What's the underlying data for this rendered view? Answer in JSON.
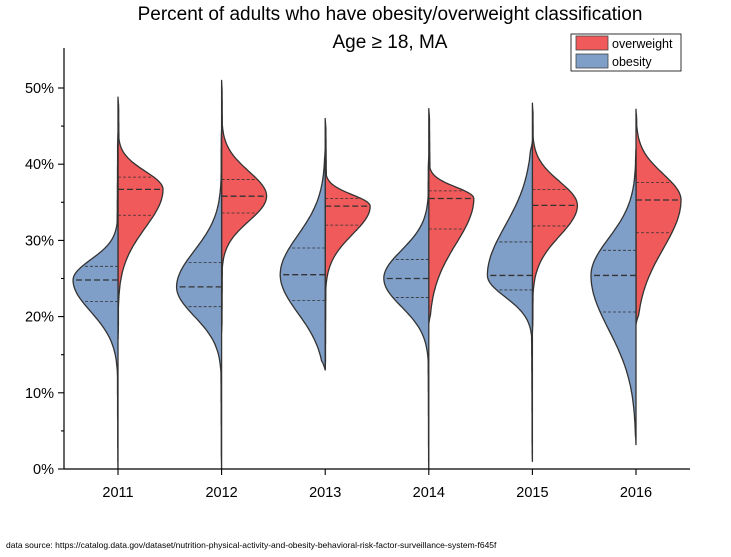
{
  "chart_data": {
    "type": "split-violin",
    "title": "Percent of adults who have obesity/overweight classification",
    "subtitle": "Age ≥ 18, MA",
    "categories": [
      "2011",
      "2012",
      "2013",
      "2014",
      "2015",
      "2016"
    ],
    "y_tick_labels": [
      "0%",
      "10%",
      "20%",
      "30%",
      "40%",
      "50%"
    ],
    "ylim": [
      0,
      55
    ],
    "legend_placement": "top-right",
    "series": [
      {
        "name": "overweight",
        "color": "#f05a5a",
        "side": "right",
        "min": [
          17,
          18,
          13,
          19,
          18,
          19
        ],
        "max": [
          48.8,
          51.0,
          46.0,
          47.3,
          48.0,
          47.2
        ],
        "q1": [
          33.3,
          33.6,
          32.0,
          31.5,
          31.9,
          31.0
        ],
        "median": [
          36.7,
          35.8,
          34.5,
          35.5,
          34.6,
          35.3
        ],
        "q3": [
          38.3,
          38.0,
          35.5,
          36.5,
          36.7,
          37.6
        ]
      },
      {
        "name": "obesity",
        "color": "#7f9fc8",
        "side": "left",
        "min": [
          0,
          0,
          13,
          0,
          1,
          3.2
        ],
        "max": [
          44.0,
          44.5,
          42.0,
          41.0,
          43.0,
          42.0
        ],
        "q1": [
          22.0,
          21.3,
          22.1,
          22.5,
          23.5,
          20.6
        ],
        "median": [
          24.8,
          23.9,
          25.5,
          25.0,
          25.4,
          25.4
        ],
        "q3": [
          26.6,
          27.1,
          29.0,
          27.5,
          29.8,
          28.7
        ]
      }
    ]
  },
  "source_note": "data source: https://catalog.data.gov/dataset/nutrition-physical-activity-and-obesity-behavioral-risk-factor-surveillance-system-f645f"
}
